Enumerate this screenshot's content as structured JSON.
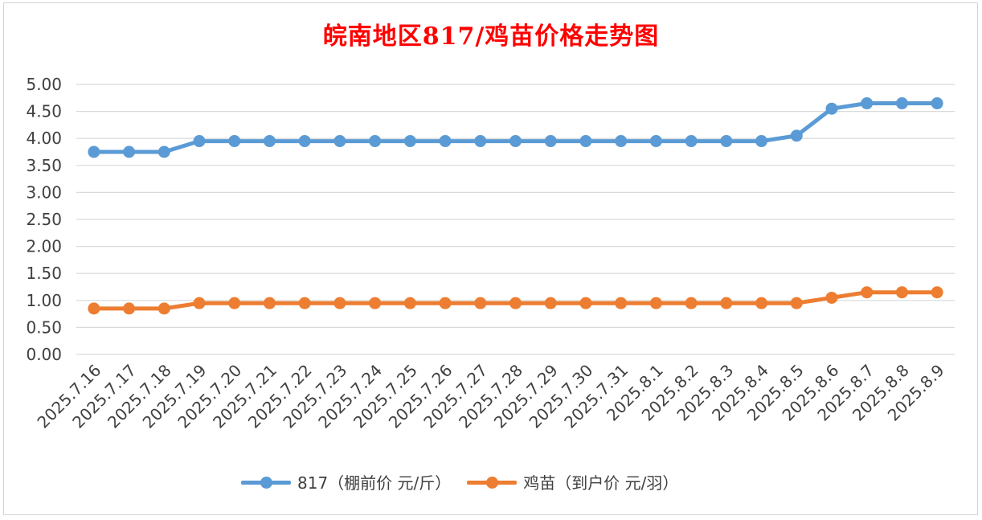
{
  "chart_data": {
    "type": "line",
    "title": "皖南地区817/鸡苗价格走势图",
    "categories": [
      "2025.7.16",
      "2025.7.17",
      "2025.7.18",
      "2025.7.19",
      "2025.7.20",
      "2025.7.21",
      "2025.7.22",
      "2025.7.23",
      "2025.7.24",
      "2025.7.25",
      "2025.7.26",
      "2025.7.27",
      "2025.7.28",
      "2025.7.29",
      "2025.7.30",
      "2025.7.31",
      "2025.8.1",
      "2025.8.2",
      "2025.8.3",
      "2025.8.4",
      "2025.8.5",
      "2025.8.6",
      "2025.8.7",
      "2025.8.8",
      "2025.8.9"
    ],
    "series": [
      {
        "name": "817（棚前价 元/斤）",
        "color": "#5b9bd5",
        "values": [
          3.75,
          3.75,
          3.75,
          3.95,
          3.95,
          3.95,
          3.95,
          3.95,
          3.95,
          3.95,
          3.95,
          3.95,
          3.95,
          3.95,
          3.95,
          3.95,
          3.95,
          3.95,
          3.95,
          3.95,
          4.05,
          4.55,
          4.65,
          4.65,
          4.65
        ]
      },
      {
        "name": "鸡苗（到户价 元/羽）",
        "color": "#ed7d31",
        "values": [
          0.85,
          0.85,
          0.85,
          0.95,
          0.95,
          0.95,
          0.95,
          0.95,
          0.95,
          0.95,
          0.95,
          0.95,
          0.95,
          0.95,
          0.95,
          0.95,
          0.95,
          0.95,
          0.95,
          0.95,
          0.95,
          1.05,
          1.15,
          1.15,
          1.15
        ]
      }
    ],
    "ylim": [
      0,
      5
    ],
    "yticks": [
      "0.00",
      "0.50",
      "1.00",
      "1.50",
      "2.00",
      "2.50",
      "3.00",
      "3.50",
      "4.00",
      "4.50",
      "5.00"
    ],
    "grid": true,
    "legend_position": "bottom",
    "title_color": "#ff0000"
  }
}
